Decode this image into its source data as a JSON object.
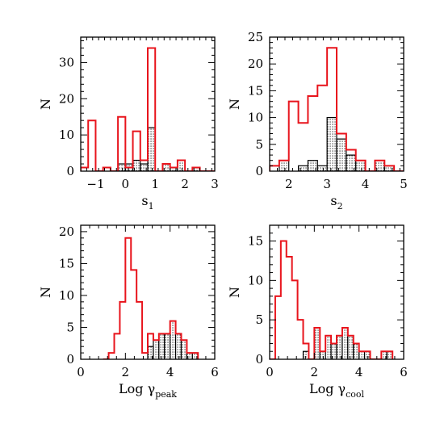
{
  "colors": {
    "red_series": "#e8141c",
    "hatched_series": "#000000",
    "frame": "#000000"
  },
  "chart_data": [
    {
      "type": "histogram",
      "xlabel_main": "s",
      "xlabel_sub": "1",
      "ylabel": "N",
      "xlim": [
        -1.5,
        3.0
      ],
      "ylim": [
        0,
        37
      ],
      "xticks": [
        -1,
        0,
        1,
        2,
        3
      ],
      "xtick_labels": [
        "−1",
        "0",
        "1",
        "2",
        "3"
      ],
      "yticks": [
        0,
        10,
        20,
        30
      ],
      "ytick_labels": [
        "0",
        "10",
        "20",
        "30"
      ],
      "bin_edges": [
        -1.5,
        -1.25,
        -1.0,
        -0.75,
        -0.5,
        -0.25,
        0.0,
        0.25,
        0.5,
        0.75,
        1.0,
        1.25,
        1.5,
        1.75,
        2.0,
        2.25,
        2.5,
        2.75,
        3.0
      ],
      "series": [
        {
          "style": "red",
          "values": [
            1,
            14,
            0,
            1,
            0,
            15,
            1,
            11,
            3,
            34,
            0,
            2,
            1,
            3,
            0,
            1,
            0,
            0
          ]
        },
        {
          "style": "hatched",
          "values": [
            0,
            0,
            0,
            0,
            0,
            2,
            2,
            3,
            2,
            12,
            0,
            2,
            1,
            3,
            0,
            1,
            0,
            0
          ]
        }
      ]
    },
    {
      "type": "histogram",
      "xlabel_main": "s",
      "xlabel_sub": "2",
      "ylabel": "N",
      "xlim": [
        1.5,
        5.0
      ],
      "ylim": [
        0,
        25
      ],
      "xticks": [
        2,
        3,
        4,
        5
      ],
      "xtick_labels": [
        "2",
        "3",
        "4",
        "5"
      ],
      "yticks": [
        0,
        5,
        10,
        15,
        20,
        25
      ],
      "ytick_labels": [
        "0",
        "5",
        "10",
        "15",
        "20",
        "25"
      ],
      "bin_edges": [
        1.5,
        1.75,
        2.0,
        2.25,
        2.5,
        2.75,
        3.0,
        3.25,
        3.5,
        3.75,
        4.0,
        4.25,
        4.5,
        4.75,
        5.0
      ],
      "series": [
        {
          "style": "red",
          "values": [
            1,
            2,
            13,
            9,
            14,
            16,
            23,
            7,
            4,
            2,
            0,
            2,
            1,
            0
          ]
        },
        {
          "style": "hatched",
          "values": [
            0,
            2,
            0,
            1,
            2,
            1,
            10,
            6,
            3,
            2,
            0,
            2,
            1,
            0
          ]
        }
      ]
    },
    {
      "type": "histogram",
      "xlabel_main": "Log γ",
      "xlabel_sub": "peak",
      "ylabel": "N",
      "xlim": [
        0,
        6
      ],
      "ylim": [
        0,
        21
      ],
      "xticks": [
        0,
        2,
        4,
        6
      ],
      "xtick_labels": [
        "0",
        "2",
        "4",
        "6"
      ],
      "yticks": [
        0,
        5,
        10,
        15,
        20
      ],
      "ytick_labels": [
        "0",
        "5",
        "10",
        "15",
        "20"
      ],
      "bin_edges": [
        1.0,
        1.25,
        1.5,
        1.75,
        2.0,
        2.25,
        2.5,
        2.75,
        3.0,
        3.25,
        3.5,
        3.75,
        4.0,
        4.25,
        4.5,
        4.75,
        5.0,
        5.25
      ],
      "series": [
        {
          "style": "red",
          "values": [
            0,
            1,
            4,
            9,
            19,
            14,
            9,
            1,
            4,
            3,
            4,
            4,
            6,
            4,
            3,
            1,
            1
          ]
        },
        {
          "style": "hatched",
          "values": [
            0,
            0,
            0,
            0,
            0,
            0,
            0,
            0,
            2,
            3,
            4,
            4,
            6,
            4,
            3,
            1,
            1
          ]
        }
      ]
    },
    {
      "type": "histogram",
      "xlabel_main": "Log γ",
      "xlabel_sub": "cool",
      "ylabel": "N",
      "xlim": [
        0,
        6
      ],
      "ylim": [
        0,
        17
      ],
      "xticks": [
        0,
        2,
        4,
        6
      ],
      "xtick_labels": [
        "0",
        "2",
        "4",
        "6"
      ],
      "yticks": [
        0,
        5,
        10,
        15
      ],
      "ytick_labels": [
        "0",
        "5",
        "10",
        "15"
      ],
      "bin_edges": [
        0.0,
        0.25,
        0.5,
        0.75,
        1.0,
        1.25,
        1.5,
        1.75,
        2.0,
        2.25,
        2.5,
        2.75,
        3.0,
        3.25,
        3.5,
        3.75,
        4.0,
        4.25,
        4.5,
        4.75,
        5.0,
        5.25,
        5.5
      ],
      "series": [
        {
          "style": "red",
          "values": [
            0,
            8,
            15,
            13,
            10,
            5,
            2,
            0,
            4,
            1,
            3,
            2,
            3,
            4,
            3,
            2,
            1,
            1,
            0,
            0,
            1,
            1
          ]
        },
        {
          "style": "hatched",
          "values": [
            0,
            0,
            0,
            0,
            0,
            0,
            1,
            0,
            4,
            1,
            3,
            2,
            3,
            4,
            3,
            2,
            1,
            1,
            0,
            0,
            1,
            1
          ]
        }
      ]
    }
  ]
}
